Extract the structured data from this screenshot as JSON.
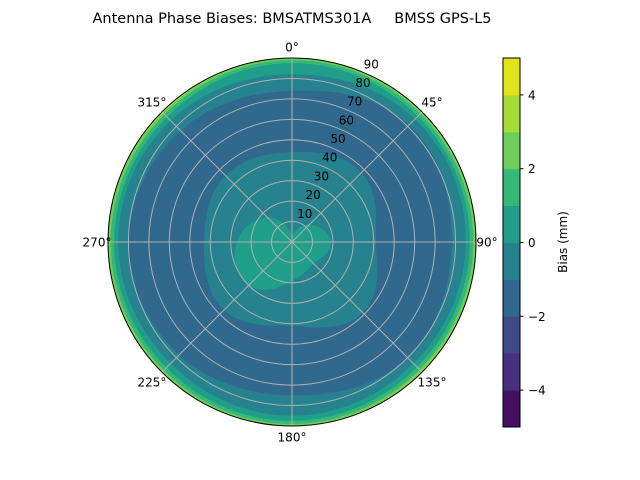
{
  "chart_data": {
    "type": "polar-contourf",
    "title": "Antenna Phase Biases: BMSATMS301A     BMSS GPS-L5",
    "angular_ticks": [
      "0°",
      "45°",
      "90°",
      "135°",
      "180°",
      "225°",
      "270°",
      "315°"
    ],
    "angular_direction": "clockwise",
    "angular_zero": "top",
    "radial_ticks": [
      "10",
      "20",
      "30",
      "40",
      "50",
      "60",
      "70",
      "80",
      "90"
    ],
    "radial_range": [
      0,
      90
    ],
    "grid": true,
    "colorbar": {
      "label": "Bias (mm)",
      "levels": [
        -5,
        -4,
        -3,
        -2,
        -1,
        0,
        1,
        2,
        3,
        4,
        5
      ],
      "tick_values": [
        -4,
        -2,
        0,
        2,
        4
      ],
      "tick_labels": [
        "−4",
        "−2",
        "0",
        "2",
        "4"
      ],
      "colormap": "viridis",
      "band_colors": [
        "#45105f",
        "#47307e",
        "#3e4a89",
        "#31688e",
        "#26828e",
        "#1f9e89",
        "#35b779",
        "#6ece58",
        "#a5db36",
        "#e2e418"
      ]
    },
    "contour_boundaries_azimuths": [
      0,
      45,
      90,
      135,
      180,
      225,
      270,
      315
    ],
    "contour_boundaries": [
      {
        "level": 3,
        "inner_band": "2 to 3",
        "outer_band": "3 to 4",
        "zenith": [
          91,
          91,
          91,
          89.3,
          91,
          91,
          91,
          89.3
        ]
      },
      {
        "level": 2,
        "inner_band": "1 to 2",
        "outer_band": "2 to 3",
        "zenith": [
          89,
          88.7,
          88.7,
          88.3,
          89,
          88.7,
          88.7,
          88.3
        ]
      },
      {
        "level": 1,
        "inner_band": "0 to 1",
        "outer_band": "1 to 2",
        "zenith": [
          87.5,
          87,
          87,
          86.5,
          87.5,
          87,
          87,
          86.5
        ]
      },
      {
        "level": 0,
        "inner_band": "-1 to 0",
        "outer_band": "0 to 1",
        "zenith": [
          82,
          85,
          85,
          84,
          85,
          84,
          85,
          84
        ]
      },
      {
        "level": -1,
        "inner_band": "-2 to -1",
        "outer_band": "-1 to 0",
        "zenith": [
          74,
          81,
          78,
          80,
          75,
          78,
          80,
          77
        ]
      },
      {
        "level": -1,
        "inner_band": "-1 to 0",
        "outer_band": "-2 to -1",
        "zenith": [
          44,
          48,
          41,
          49,
          41,
          47,
          43,
          46
        ]
      },
      {
        "level": 0,
        "inner_band": "0 to 1",
        "outer_band": "-1 to 0",
        "zenith": [
          4,
          12,
          19,
          15,
          19,
          30,
          27,
          17
        ]
      }
    ]
  }
}
